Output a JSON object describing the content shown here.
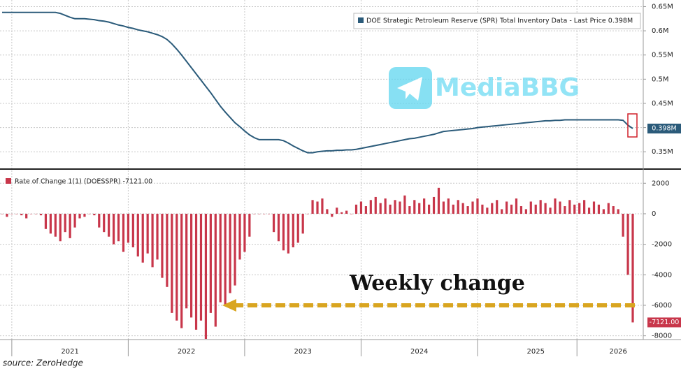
{
  "chart_data": [
    {
      "type": "line",
      "legend": "DOE Strategic Petroleum Reserve (SPR) Total Inventory Data - Last Price 0.398M",
      "series": [
        {
          "name": "SPR Total Inventory",
          "color": "#2b5b7a",
          "values": [
            0.638,
            0.638,
            0.638,
            0.638,
            0.638,
            0.638,
            0.638,
            0.638,
            0.638,
            0.638,
            0.638,
            0.638,
            0.636,
            0.632,
            0.628,
            0.625,
            0.625,
            0.625,
            0.624,
            0.623,
            0.621,
            0.62,
            0.618,
            0.615,
            0.612,
            0.61,
            0.607,
            0.605,
            0.602,
            0.6,
            0.598,
            0.595,
            0.592,
            0.588,
            0.582,
            0.573,
            0.562,
            0.55,
            0.537,
            0.524,
            0.511,
            0.498,
            0.485,
            0.472,
            0.458,
            0.444,
            0.432,
            0.421,
            0.41,
            0.402,
            0.393,
            0.385,
            0.379,
            0.375,
            0.375,
            0.375,
            0.375,
            0.375,
            0.373,
            0.368,
            0.362,
            0.357,
            0.352,
            0.348,
            0.348,
            0.35,
            0.351,
            0.352,
            0.352,
            0.353,
            0.353,
            0.354,
            0.354,
            0.355,
            0.357,
            0.359,
            0.361,
            0.363,
            0.365,
            0.367,
            0.369,
            0.371,
            0.373,
            0.375,
            0.377,
            0.378,
            0.38,
            0.382,
            0.384,
            0.386,
            0.389,
            0.392,
            0.393,
            0.394,
            0.395,
            0.396,
            0.397,
            0.398,
            0.4,
            0.401,
            0.402,
            0.403,
            0.404,
            0.405,
            0.406,
            0.407,
            0.408,
            0.409,
            0.41,
            0.411,
            0.412,
            0.413,
            0.414,
            0.414,
            0.415,
            0.415,
            0.416,
            0.416,
            0.416,
            0.416,
            0.416,
            0.416,
            0.416,
            0.416,
            0.416,
            0.416,
            0.416,
            0.416,
            0.415,
            0.405,
            0.398
          ]
        }
      ],
      "last_value": {
        "value": 0.398,
        "label": "0.398M"
      },
      "ylim": [
        0.32,
        0.655
      ],
      "yticks": [
        {
          "value": 0.35,
          "label": "0.35M"
        },
        {
          "value": 0.4,
          "label": "0.4M"
        },
        {
          "value": 0.45,
          "label": "0.45M"
        },
        {
          "value": 0.5,
          "label": "0.5M"
        },
        {
          "value": 0.55,
          "label": "0.55M"
        },
        {
          "value": 0.6,
          "label": "0.6M"
        },
        {
          "value": 0.65,
          "label": "0.65M"
        }
      ],
      "grid": true
    },
    {
      "type": "bar",
      "legend": "Rate of Change 1(1) (DOESSPR) -7121.00",
      "annotation": "Weekly change",
      "categories": [
        null,
        null,
        null,
        null,
        null,
        null,
        null,
        null,
        null,
        null,
        null,
        null,
        null,
        null,
        "2021",
        null,
        null,
        null,
        null,
        null,
        null,
        null,
        null,
        null,
        null,
        null,
        null,
        null,
        null,
        null,
        null,
        null,
        null,
        null,
        null,
        null,
        null,
        null,
        "2022",
        null,
        null,
        null,
        null,
        null,
        null,
        null,
        null,
        null,
        null,
        null,
        null,
        null,
        null,
        null,
        null,
        null,
        null,
        null,
        null,
        null,
        null,
        null,
        "2023",
        null,
        null,
        null,
        null,
        null,
        null,
        null,
        null,
        null,
        null,
        null,
        null,
        null,
        null,
        null,
        null,
        null,
        null,
        null,
        null,
        null,
        null,
        null,
        "2024",
        null,
        null,
        null,
        null,
        null,
        null,
        null,
        null,
        null,
        null,
        null,
        null,
        null,
        null,
        null,
        null,
        null,
        null,
        null,
        null,
        null,
        null,
        null,
        "2025",
        null,
        null,
        null,
        null,
        null,
        null,
        null,
        null,
        null,
        null,
        null,
        null,
        null,
        null,
        null,
        null,
        "2026",
        null,
        null,
        null
      ],
      "series": [
        {
          "name": "Rate of Change",
          "color": "#c8364a",
          "values": [
            0,
            -200,
            0,
            0,
            -100,
            -300,
            0,
            0,
            -100,
            -1000,
            -1300,
            -1500,
            -1800,
            -1200,
            -1600,
            -900,
            -300,
            -200,
            0,
            -100,
            -900,
            -1200,
            -1500,
            -2000,
            -1800,
            -2500,
            -1900,
            -2200,
            -2800,
            -3200,
            -2600,
            -3500,
            -3000,
            -4200,
            -4800,
            -6500,
            -7000,
            -7500,
            -6200,
            -6800,
            -7600,
            -7000,
            -8200,
            -6500,
            -7400,
            -5800,
            -6000,
            -5200,
            -4700,
            -3000,
            -2500,
            -1500,
            0,
            0,
            0,
            0,
            -1200,
            -1800,
            -2400,
            -2600,
            -2200,
            -1900,
            -1300,
            0,
            900,
            800,
            1000,
            300,
            -200,
            400,
            100,
            200,
            0,
            600,
            800,
            500,
            900,
            1100,
            700,
            1000,
            600,
            900,
            800,
            1200,
            500,
            900,
            700,
            1000,
            600,
            1100,
            1700,
            800,
            1000,
            600,
            900,
            700,
            500,
            800,
            1000,
            600,
            400,
            700,
            900,
            300,
            800,
            600,
            1000,
            500,
            300,
            800,
            600,
            900,
            700,
            400,
            1000,
            800,
            500,
            900,
            600,
            700,
            900,
            400,
            800,
            600,
            300,
            700,
            500,
            300,
            -1500,
            -4000,
            -7121
          ]
        }
      ],
      "last_value": {
        "value": -7121,
        "label": "-7121.00"
      },
      "ylim": [
        -8200,
        2700
      ],
      "yticks": [
        -8000,
        -6000,
        -4000,
        -2000,
        0,
        2000
      ],
      "grid": true
    }
  ],
  "source": "source: ZeroHedge",
  "watermark": "MediaBBG"
}
